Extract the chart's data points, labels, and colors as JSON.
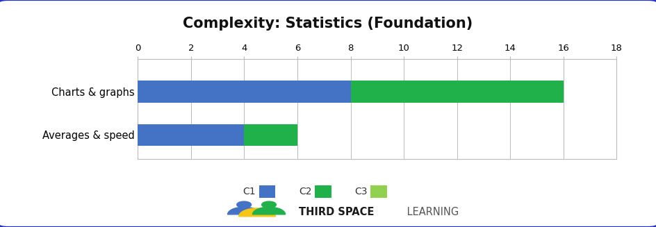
{
  "title": "Complexity: Statistics (Foundation)",
  "categories": [
    "Charts & graphs",
    "Averages & speed"
  ],
  "series": {
    "C1": [
      8,
      4
    ],
    "C2": [
      8,
      2
    ],
    "C3": [
      0,
      0
    ]
  },
  "colors": {
    "C1": "#4472C4",
    "C2": "#21B14B",
    "C3": "#92D050"
  },
  "xlim": [
    0,
    18
  ],
  "xticks": [
    0,
    2,
    4,
    6,
    8,
    10,
    12,
    14,
    16,
    18
  ],
  "bar_height": 0.5,
  "background_color": "#ffffff",
  "border_color": "#2233CC",
  "title_fontsize": 15,
  "legend_fontsize": 10,
  "tick_fontsize": 9.5,
  "ylabel_fontsize": 10.5,
  "legend_labels": [
    "C1",
    "C2",
    "C3"
  ],
  "logo_colors": {
    "blue": "#4472C4",
    "yellow": "#F5C518",
    "green": "#21B14B"
  }
}
